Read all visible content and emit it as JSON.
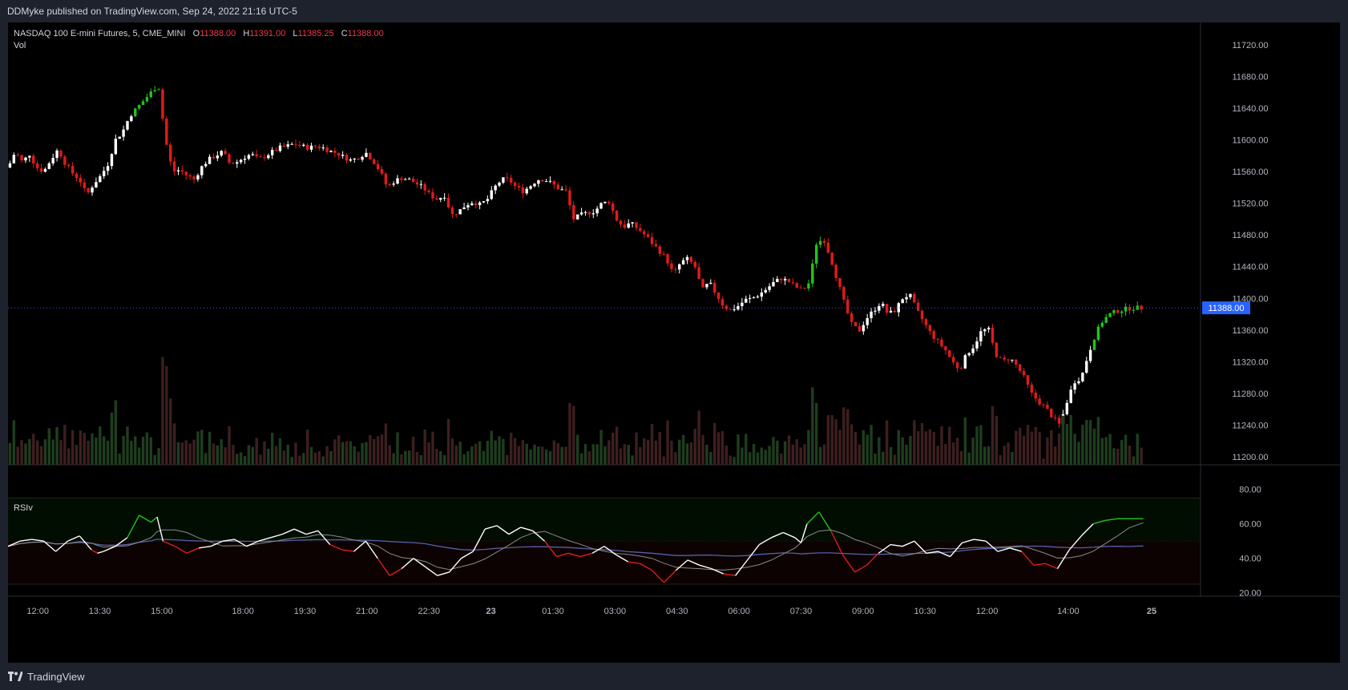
{
  "header": {
    "published_text": "DDMyke published on TradingView.com, Sep 24, 2022 21:16 UTC-5"
  },
  "legend": {
    "symbol": "NASDAQ 100 E-mini Futures, 5, CME_MINI",
    "o_label": "O",
    "o_value": "11388.00",
    "h_label": "H",
    "h_value": "11391.00",
    "l_label": "L",
    "l_value": "11385.25",
    "c_label": "C",
    "c_value": "11388.00",
    "vol_label": "Vol"
  },
  "rsi_panel": {
    "label": "RSIv"
  },
  "footer": {
    "brand": "TradingView"
  },
  "colors": {
    "up": "#ffffff",
    "down": "#e01b1b",
    "strong_up": "#22c41a",
    "rsi_line": "#ffffff",
    "rsi_bull": "#22c41a",
    "rsi_bear": "#e01b1b",
    "rsi_ma1": "#8a8a8a",
    "rsi_ma2": "#5560a8",
    "price_tag": "#2962ff",
    "grid": "#1c1c1c",
    "background": "#000000"
  },
  "chart_data": {
    "type": "candlestick",
    "price_axis": {
      "ticks": [
        "11720.00",
        "11680.00",
        "11640.00",
        "11600.00",
        "11560.00",
        "11520.00",
        "11480.00",
        "11440.00",
        "11400.00",
        "11360.00",
        "11320.00",
        "11280.00",
        "11240.00",
        "11200.00"
      ],
      "range": [
        11190,
        11738
      ],
      "current_price": "11388.00"
    },
    "rsi_axis": {
      "ticks": [
        "80.00",
        "60.00",
        "40.00",
        "20.00"
      ],
      "range": [
        18,
        85
      ],
      "upper_band": 75,
      "middle": 50,
      "lower_band": 25
    },
    "time_axis": {
      "labels": [
        {
          "t": "12:00",
          "x": 0.025,
          "bold": false
        },
        {
          "t": "13:30",
          "x": 0.077,
          "bold": false
        },
        {
          "t": "15:00",
          "x": 0.129,
          "bold": false
        },
        {
          "t": "18:00",
          "x": 0.197,
          "bold": false
        },
        {
          "t": "19:30",
          "x": 0.249,
          "bold": false
        },
        {
          "t": "21:00",
          "x": 0.301,
          "bold": false
        },
        {
          "t": "22:30",
          "x": 0.353,
          "bold": false
        },
        {
          "t": "23",
          "x": 0.405,
          "bold": true
        },
        {
          "t": "01:30",
          "x": 0.457,
          "bold": false
        },
        {
          "t": "03:00",
          "x": 0.509,
          "bold": false
        },
        {
          "t": "04:30",
          "x": 0.561,
          "bold": false
        },
        {
          "t": "06:00",
          "x": 0.613,
          "bold": false
        },
        {
          "t": "07:30",
          "x": 0.665,
          "bold": false
        },
        {
          "t": "09:00",
          "x": 0.717,
          "bold": false
        },
        {
          "t": "10:30",
          "x": 0.769,
          "bold": false
        },
        {
          "t": "12:00",
          "x": 0.821,
          "bold": false
        },
        {
          "t": "14:00",
          "x": 0.889,
          "bold": false
        },
        {
          "t": "25",
          "x": 0.959,
          "bold": true
        }
      ]
    },
    "price_path": [
      [
        0.0,
        11565
      ],
      [
        0.006,
        11585
      ],
      [
        0.012,
        11572
      ],
      [
        0.018,
        11582
      ],
      [
        0.024,
        11565
      ],
      [
        0.03,
        11560
      ],
      [
        0.036,
        11575
      ],
      [
        0.042,
        11588
      ],
      [
        0.048,
        11570
      ],
      [
        0.054,
        11558
      ],
      [
        0.06,
        11550
      ],
      [
        0.066,
        11530
      ],
      [
        0.072,
        11545
      ],
      [
        0.078,
        11555
      ],
      [
        0.084,
        11570
      ],
      [
        0.09,
        11600
      ],
      [
        0.096,
        11610
      ],
      [
        0.102,
        11630
      ],
      [
        0.108,
        11640
      ],
      [
        0.114,
        11650
      ],
      [
        0.12,
        11660
      ],
      [
        0.126,
        11670
      ],
      [
        0.132,
        11600
      ],
      [
        0.138,
        11560
      ],
      [
        0.144,
        11562
      ],
      [
        0.15,
        11555
      ],
      [
        0.156,
        11550
      ],
      [
        0.162,
        11565
      ],
      [
        0.168,
        11575
      ],
      [
        0.174,
        11580
      ],
      [
        0.18,
        11585
      ],
      [
        0.186,
        11570
      ],
      [
        0.192,
        11572
      ],
      [
        0.198,
        11578
      ],
      [
        0.204,
        11582
      ],
      [
        0.21,
        11575
      ],
      [
        0.216,
        11580
      ],
      [
        0.222,
        11585
      ],
      [
        0.228,
        11590
      ],
      [
        0.234,
        11592
      ],
      [
        0.24,
        11595
      ],
      [
        0.246,
        11592
      ],
      [
        0.252,
        11590
      ],
      [
        0.258,
        11592
      ],
      [
        0.264,
        11590
      ],
      [
        0.27,
        11586
      ],
      [
        0.276,
        11583
      ],
      [
        0.282,
        11578
      ],
      [
        0.288,
        11574
      ],
      [
        0.294,
        11578
      ],
      [
        0.3,
        11584
      ],
      [
        0.306,
        11574
      ],
      [
        0.312,
        11560
      ],
      [
        0.318,
        11540
      ],
      [
        0.324,
        11548
      ],
      [
        0.33,
        11552
      ],
      [
        0.336,
        11550
      ],
      [
        0.342,
        11545
      ],
      [
        0.348,
        11540
      ],
      [
        0.354,
        11530
      ],
      [
        0.36,
        11525
      ],
      [
        0.366,
        11530
      ],
      [
        0.372,
        11505
      ],
      [
        0.378,
        11510
      ],
      [
        0.384,
        11518
      ],
      [
        0.39,
        11522
      ],
      [
        0.396,
        11518
      ],
      [
        0.402,
        11525
      ],
      [
        0.408,
        11540
      ],
      [
        0.414,
        11550
      ],
      [
        0.42,
        11550
      ],
      [
        0.426,
        11540
      ],
      [
        0.432,
        11535
      ],
      [
        0.438,
        11542
      ],
      [
        0.444,
        11550
      ],
      [
        0.45,
        11550
      ],
      [
        0.456,
        11545
      ],
      [
        0.462,
        11538
      ],
      [
        0.468,
        11535
      ],
      [
        0.474,
        11500
      ],
      [
        0.48,
        11505
      ],
      [
        0.486,
        11508
      ],
      [
        0.492,
        11510
      ],
      [
        0.498,
        11520
      ],
      [
        0.504,
        11522
      ],
      [
        0.51,
        11500
      ],
      [
        0.516,
        11490
      ],
      [
        0.522,
        11495
      ],
      [
        0.528,
        11488
      ],
      [
        0.534,
        11480
      ],
      [
        0.54,
        11470
      ],
      [
        0.546,
        11460
      ],
      [
        0.552,
        11450
      ],
      [
        0.558,
        11430
      ],
      [
        0.564,
        11445
      ],
      [
        0.57,
        11450
      ],
      [
        0.576,
        11440
      ],
      [
        0.582,
        11410
      ],
      [
        0.588,
        11420
      ],
      [
        0.594,
        11405
      ],
      [
        0.6,
        11390
      ],
      [
        0.606,
        11385
      ],
      [
        0.612,
        11390
      ],
      [
        0.618,
        11398
      ],
      [
        0.624,
        11400
      ],
      [
        0.63,
        11405
      ],
      [
        0.636,
        11412
      ],
      [
        0.642,
        11420
      ],
      [
        0.648,
        11425
      ],
      [
        0.654,
        11422
      ],
      [
        0.66,
        11415
      ],
      [
        0.666,
        11410
      ],
      [
        0.672,
        11420
      ],
      [
        0.678,
        11470
      ],
      [
        0.684,
        11475
      ],
      [
        0.69,
        11450
      ],
      [
        0.696,
        11420
      ],
      [
        0.702,
        11390
      ],
      [
        0.708,
        11365
      ],
      [
        0.714,
        11360
      ],
      [
        0.72,
        11375
      ],
      [
        0.726,
        11385
      ],
      [
        0.732,
        11395
      ],
      [
        0.738,
        11380
      ],
      [
        0.744,
        11385
      ],
      [
        0.75,
        11400
      ],
      [
        0.756,
        11405
      ],
      [
        0.762,
        11385
      ],
      [
        0.768,
        11370
      ],
      [
        0.774,
        11355
      ],
      [
        0.78,
        11345
      ],
      [
        0.786,
        11335
      ],
      [
        0.792,
        11320
      ],
      [
        0.798,
        11310
      ],
      [
        0.804,
        11330
      ],
      [
        0.81,
        11340
      ],
      [
        0.816,
        11358
      ],
      [
        0.822,
        11362
      ],
      [
        0.828,
        11330
      ],
      [
        0.834,
        11320
      ],
      [
        0.84,
        11325
      ],
      [
        0.846,
        11315
      ],
      [
        0.852,
        11300
      ],
      [
        0.858,
        11280
      ],
      [
        0.864,
        11270
      ],
      [
        0.87,
        11262
      ],
      [
        0.876,
        11250
      ],
      [
        0.882,
        11240
      ],
      [
        0.888,
        11270
      ],
      [
        0.894,
        11295
      ],
      [
        0.9,
        11300
      ],
      [
        0.906,
        11330
      ],
      [
        0.912,
        11355
      ],
      [
        0.918,
        11372
      ],
      [
        0.924,
        11380
      ],
      [
        0.93,
        11384
      ],
      [
        0.936,
        11386
      ],
      [
        0.942,
        11388
      ],
      [
        0.948,
        11388
      ],
      [
        0.952,
        11388
      ]
    ],
    "rsi_path": [
      [
        0.0,
        47
      ],
      [
        0.01,
        50
      ],
      [
        0.02,
        51
      ],
      [
        0.03,
        50
      ],
      [
        0.04,
        44
      ],
      [
        0.05,
        50
      ],
      [
        0.06,
        53
      ],
      [
        0.07,
        45
      ],
      [
        0.075,
        43
      ],
      [
        0.08,
        44
      ],
      [
        0.09,
        47
      ],
      [
        0.1,
        52
      ],
      [
        0.11,
        65
      ],
      [
        0.12,
        61
      ],
      [
        0.125,
        64
      ],
      [
        0.13,
        50
      ],
      [
        0.14,
        47
      ],
      [
        0.15,
        43
      ],
      [
        0.16,
        46
      ],
      [
        0.17,
        47
      ],
      [
        0.18,
        50
      ],
      [
        0.19,
        51
      ],
      [
        0.2,
        47
      ],
      [
        0.21,
        50
      ],
      [
        0.22,
        52
      ],
      [
        0.23,
        54
      ],
      [
        0.24,
        57
      ],
      [
        0.25,
        54
      ],
      [
        0.26,
        56
      ],
      [
        0.27,
        48
      ],
      [
        0.28,
        45
      ],
      [
        0.29,
        44
      ],
      [
        0.3,
        50
      ],
      [
        0.31,
        40
      ],
      [
        0.32,
        30
      ],
      [
        0.33,
        34
      ],
      [
        0.34,
        40
      ],
      [
        0.35,
        35
      ],
      [
        0.36,
        30
      ],
      [
        0.37,
        32
      ],
      [
        0.38,
        40
      ],
      [
        0.39,
        44
      ],
      [
        0.4,
        57
      ],
      [
        0.41,
        59
      ],
      [
        0.42,
        54
      ],
      [
        0.43,
        58
      ],
      [
        0.44,
        56
      ],
      [
        0.45,
        50
      ],
      [
        0.46,
        41
      ],
      [
        0.47,
        43
      ],
      [
        0.48,
        41
      ],
      [
        0.49,
        43
      ],
      [
        0.5,
        47
      ],
      [
        0.51,
        42
      ],
      [
        0.52,
        38
      ],
      [
        0.53,
        37
      ],
      [
        0.54,
        33
      ],
      [
        0.55,
        26
      ],
      [
        0.56,
        33
      ],
      [
        0.57,
        39
      ],
      [
        0.58,
        36
      ],
      [
        0.59,
        34
      ],
      [
        0.6,
        31
      ],
      [
        0.61,
        30
      ],
      [
        0.62,
        39
      ],
      [
        0.63,
        48
      ],
      [
        0.64,
        52
      ],
      [
        0.65,
        55
      ],
      [
        0.66,
        52
      ],
      [
        0.665,
        49
      ],
      [
        0.67,
        60
      ],
      [
        0.68,
        67
      ],
      [
        0.69,
        56
      ],
      [
        0.7,
        42
      ],
      [
        0.71,
        32
      ],
      [
        0.72,
        36
      ],
      [
        0.73,
        43
      ],
      [
        0.74,
        48
      ],
      [
        0.75,
        47
      ],
      [
        0.76,
        50
      ],
      [
        0.77,
        43
      ],
      [
        0.78,
        44
      ],
      [
        0.79,
        41
      ],
      [
        0.8,
        49
      ],
      [
        0.81,
        51
      ],
      [
        0.82,
        50
      ],
      [
        0.83,
        44
      ],
      [
        0.84,
        46
      ],
      [
        0.85,
        44
      ],
      [
        0.86,
        36
      ],
      [
        0.87,
        37
      ],
      [
        0.88,
        34
      ],
      [
        0.89,
        45
      ],
      [
        0.9,
        53
      ],
      [
        0.91,
        60
      ],
      [
        0.92,
        62
      ],
      [
        0.93,
        63
      ],
      [
        0.94,
        63
      ],
      [
        0.952,
        63
      ]
    ]
  }
}
